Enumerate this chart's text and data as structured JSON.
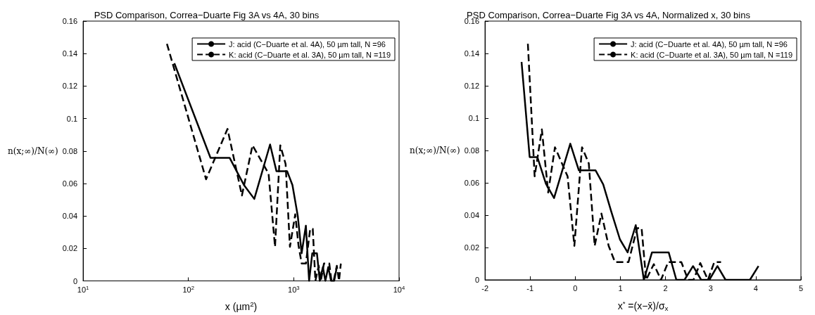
{
  "chart_data": [
    {
      "type": "line",
      "title": "PSD Comparison, Correa−Duarte Fig 3A vs 4A, 30 bins",
      "xlabel": "x (µm$^{2}$)",
      "ylabel": "n(x;∞)/N(∞)",
      "log": "x",
      "xlim": [
        10,
        10000
      ],
      "xticks": [
        {
          "value": 10,
          "label": "10$^{1}$"
        },
        {
          "value": 100,
          "label": "10$^{2}$"
        },
        {
          "value": 1000,
          "label": "10$^{3}$"
        },
        {
          "value": 10000,
          "label": "10$^{4}$"
        }
      ],
      "ylim": [
        0,
        0.16
      ],
      "yticks": [
        0,
        0.02,
        0.04,
        0.06,
        0.08,
        0.1,
        0.12,
        0.14,
        0.16
      ],
      "legend": "top right",
      "grid": false,
      "marker": "none",
      "series": [
        {
          "name": "J: acid (C−Duarte et al. 4A), 50 µm tall, N =96",
          "color": "#000000",
          "line_style": "solid",
          "x": [
            73.5,
            162,
            246,
            337,
            422,
            596,
            685,
            865,
            972,
            1092,
            1188,
            1304,
            1399,
            1500,
            1660,
            1766,
            1892,
            1996,
            2128,
            2259,
            2420,
            2565
          ],
          "values": [
            0.134,
            0.0758,
            0.0758,
            0.059,
            0.0505,
            0.084,
            0.0676,
            0.0676,
            0.059,
            0.04,
            0.017,
            0.034,
            0,
            0.017,
            0.017,
            0,
            0.0085,
            0,
            0.0085,
            0,
            0,
            0.0085
          ]
        },
        {
          "name": "K: acid (C−Duarte et al. 3A), 50 µm tall, N =119",
          "color": "#000000",
          "line_style": "dashed",
          "x": [
            62.5,
            147,
            235,
            322,
            406,
            577,
            664,
            745,
            837,
            920,
            1033,
            1109,
            1189,
            1304,
            1432,
            1516,
            1606,
            1725,
            1807,
            1936,
            2176,
            2280,
            2392,
            2565,
            2690,
            2800
          ],
          "values": [
            0.146,
            0.0626,
            0.0936,
            0.0526,
            0.0835,
            0.066,
            0.021,
            0.0835,
            0.072,
            0.021,
            0.041,
            0.022,
            0.0107,
            0.0107,
            0.032,
            0.032,
            0,
            0.0093,
            0,
            0.0107,
            0.0107,
            0,
            0,
            0.0093,
            0,
            0.0107
          ]
        }
      ]
    },
    {
      "type": "line",
      "title": "PSD Comparison, Correa−Duarte Fig 3A vs 4A, Normalized x, 30 bins",
      "xlabel": "x$^{*}$ =(x−x̄)/σ$_{x}$",
      "ylabel": "n(x;∞)/N(∞)",
      "xlim": [
        -2,
        5
      ],
      "xticks": [
        -2,
        -1,
        0,
        1,
        2,
        3,
        4,
        5
      ],
      "ylim": [
        0,
        0.16
      ],
      "yticks": [
        0,
        0.02,
        0.04,
        0.06,
        0.08,
        0.1,
        0.12,
        0.14,
        0.16
      ],
      "legend": "top right",
      "grid": false,
      "marker": "none",
      "series": [
        {
          "name": "J: acid (C−Duarte et al. 4A), 50 µm tall, N =96",
          "color": "#000000",
          "line_style": "solid",
          "x": [
            -1.19,
            -1.01,
            -0.84,
            -0.65,
            -0.47,
            -0.11,
            0.08,
            0.45,
            0.62,
            0.8,
            0.99,
            1.16,
            1.34,
            1.52,
            1.7,
            2.07,
            2.24,
            2.42,
            2.61,
            2.79,
            2.97,
            3.15,
            3.33,
            3.87,
            4.06
          ],
          "values": [
            0.1347,
            0.0759,
            0.0759,
            0.0594,
            0.0506,
            0.0842,
            0.0677,
            0.0677,
            0.059,
            0.042,
            0.025,
            0.017,
            0.0338,
            0,
            0.017,
            0.017,
            0,
            0,
            0.0085,
            0,
            0,
            0.0085,
            0,
            0,
            0.0085
          ]
        },
        {
          "name": "K: acid (C−Duarte et al. 3A), 50 µm tall, N =119",
          "color": "#000000",
          "line_style": "dashed",
          "x": [
            -1.05,
            -0.9,
            -0.74,
            -0.6,
            -0.45,
            -0.17,
            -0.02,
            0.15,
            0.3,
            0.43,
            0.58,
            0.74,
            0.88,
            1.18,
            1.37,
            1.47,
            1.57,
            1.74,
            1.9,
            2.06,
            2.35,
            2.5,
            2.62,
            2.77,
            2.94,
            3.08,
            3.23
          ],
          "values": [
            0.146,
            0.064,
            0.093,
            0.054,
            0.082,
            0.064,
            0.021,
            0.082,
            0.072,
            0.021,
            0.041,
            0.021,
            0.011,
            0.011,
            0.032,
            0.032,
            0,
            0.0097,
            0,
            0.011,
            0.011,
            0,
            0,
            0.0104,
            0,
            0.011,
            0.011
          ]
        }
      ]
    }
  ]
}
